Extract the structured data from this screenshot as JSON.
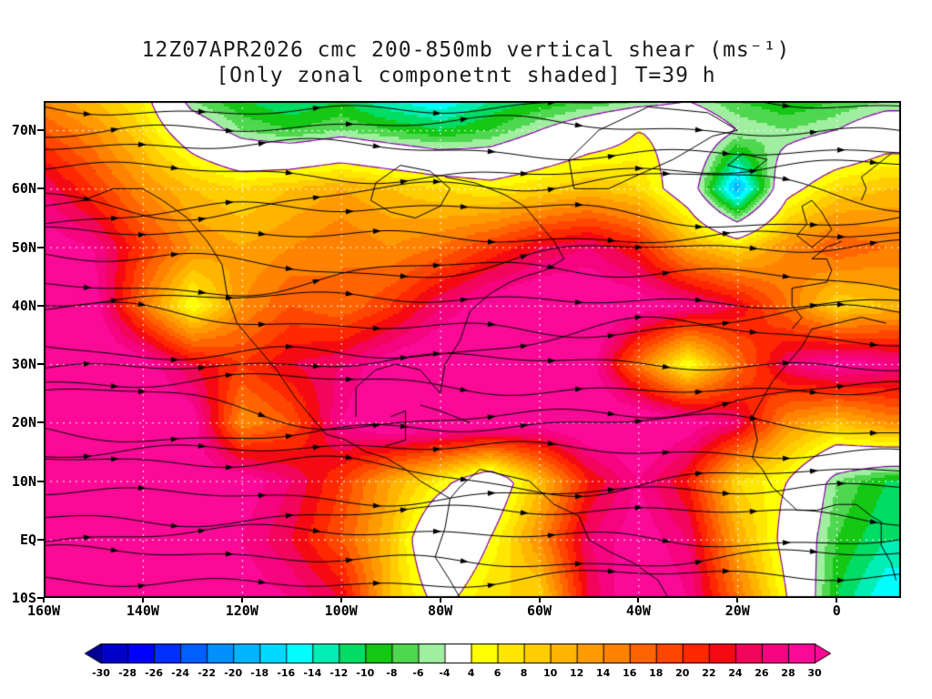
{
  "chart_data": {
    "type": "heatmap",
    "title": "12Z07APR2026 cmc 200-850mb vertical shear (ms⁻¹)",
    "subtitle": "[Only zonal componetnt shaded] T=39 h",
    "units": "ms⁻¹",
    "x_axis": {
      "tick_labels": [
        "160W",
        "140W",
        "120W",
        "100W",
        "80W",
        "60W",
        "40W",
        "20W",
        "0"
      ],
      "tick_lons": [
        -160,
        -140,
        -120,
        -100,
        -80,
        -60,
        -40,
        -20,
        0
      ]
    },
    "y_axis": {
      "tick_labels": [
        "70N",
        "60N",
        "50N",
        "40N",
        "30N",
        "20N",
        "10N",
        "EQ",
        "10S"
      ],
      "tick_lats": [
        70,
        60,
        50,
        40,
        30,
        20,
        10,
        0,
        -10
      ]
    },
    "domain": {
      "lon_min": -160,
      "lon_max": 13,
      "lat_min": -10,
      "lat_max": 75
    },
    "field": {
      "description": "zonal component of 200-850mb vertical shear (shaded), estimated coarse grid",
      "lons": [
        -160,
        -150,
        -140,
        -130,
        -120,
        -110,
        -100,
        -90,
        -80,
        -70,
        -60,
        -50,
        -40,
        -30,
        -20,
        -10,
        0,
        10
      ],
      "lats": [
        75,
        70,
        60,
        50,
        40,
        30,
        20,
        10,
        0,
        -10
      ],
      "values": [
        [
          14,
          10,
          6,
          -6,
          -10,
          -12,
          -10,
          -14,
          -16,
          -12,
          -10,
          -8,
          -6,
          -4,
          -8,
          -10,
          -8,
          -6
        ],
        [
          18,
          14,
          8,
          0,
          -6,
          -8,
          -6,
          -8,
          -10,
          -8,
          -4,
          0,
          4,
          2,
          -4,
          -6,
          -4,
          0
        ],
        [
          26,
          20,
          14,
          10,
          8,
          10,
          12,
          10,
          8,
          6,
          8,
          10,
          8,
          0,
          -20,
          2,
          8,
          10
        ],
        [
          30,
          28,
          20,
          14,
          12,
          14,
          16,
          14,
          16,
          20,
          24,
          26,
          22,
          12,
          8,
          14,
          18,
          16
        ],
        [
          32,
          30,
          16,
          4,
          14,
          18,
          16,
          20,
          26,
          30,
          32,
          32,
          30,
          28,
          24,
          16,
          8,
          10
        ],
        [
          32,
          32,
          30,
          24,
          20,
          24,
          26,
          30,
          32,
          32,
          32,
          30,
          16,
          4,
          16,
          26,
          30,
          28
        ],
        [
          30,
          32,
          32,
          30,
          14,
          18,
          28,
          32,
          32,
          32,
          30,
          32,
          32,
          30,
          26,
          14,
          10,
          14
        ],
        [
          32,
          30,
          28,
          30,
          30,
          26,
          20,
          12,
          6,
          -2,
          10,
          22,
          28,
          22,
          8,
          4,
          -6,
          -10
        ],
        [
          30,
          32,
          32,
          30,
          28,
          24,
          18,
          10,
          -4,
          4,
          14,
          26,
          30,
          26,
          12,
          2,
          -8,
          -12
        ],
        [
          32,
          32,
          30,
          32,
          30,
          28,
          24,
          10,
          2,
          8,
          8,
          24,
          32,
          28,
          16,
          4,
          -10,
          -16
        ]
      ]
    },
    "colorbar": {
      "boundaries": [
        -30,
        -28,
        -26,
        -24,
        -22,
        -20,
        -18,
        -16,
        -14,
        -12,
        -10,
        -8,
        -6,
        -4,
        4,
        6,
        8,
        10,
        12,
        14,
        16,
        18,
        20,
        22,
        24,
        26,
        28,
        30
      ],
      "labels": [
        "-30",
        "-28",
        "-26",
        "-24",
        "-22",
        "-20",
        "-18",
        "-16",
        "-14",
        "-12",
        "-10",
        "-8",
        "-6",
        "-4",
        "4",
        "6",
        "8",
        "10",
        "12",
        "14",
        "16",
        "18",
        "20",
        "22",
        "24",
        "26",
        "28",
        "30"
      ],
      "colors": [
        "#000099",
        "#0000cc",
        "#0000ff",
        "#0030ff",
        "#0060ff",
        "#0090ff",
        "#00b4ff",
        "#00d8ff",
        "#00ffff",
        "#00eeb4",
        "#00dc64",
        "#14c814",
        "#50d750",
        "#a0eea0",
        "#ffffff",
        "#ffff00",
        "#ffe600",
        "#ffcd00",
        "#ffb400",
        "#ff9b00",
        "#ff8200",
        "#ff6400",
        "#ff4600",
        "#ff2800",
        "#f50a14",
        "#f2055a",
        "#f60380",
        "#fa0a96",
        "#fa0a96"
      ]
    },
    "overlays": {
      "streamlines": {
        "color": "#000000",
        "description": "shear streamlines with arrowheads"
      },
      "coastlines": {
        "color": "#000000"
      },
      "contours": {
        "color": "#8800aa",
        "levels": [
          -4,
          4
        ]
      },
      "gridlines": {
        "color": "#ffffff",
        "style": "dotted",
        "lat_interval": 10,
        "lon_interval": 20
      }
    }
  }
}
